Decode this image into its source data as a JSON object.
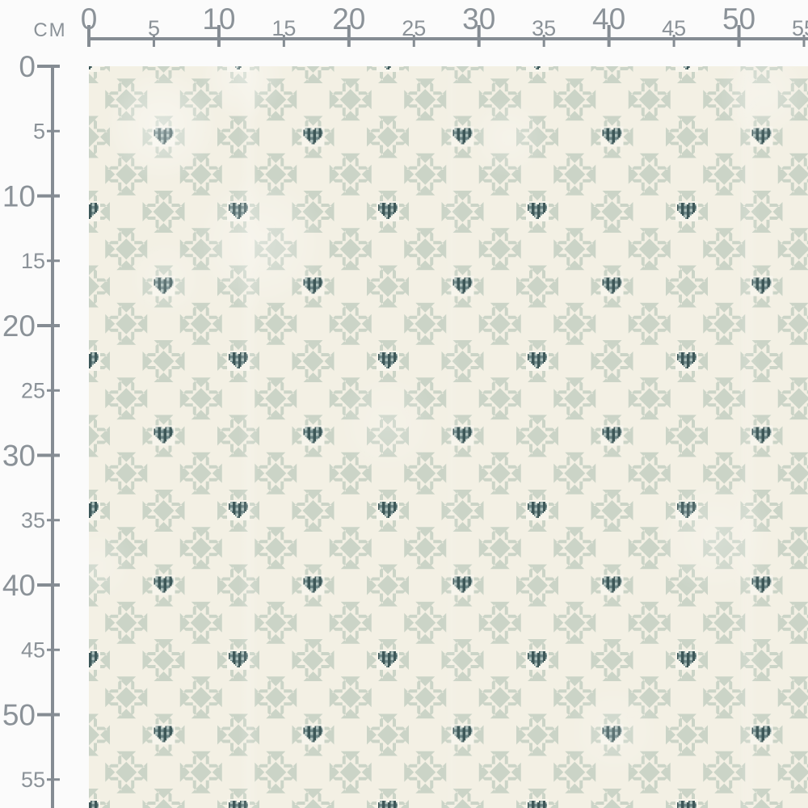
{
  "unit_label": "CM",
  "rulers": {
    "horizontal": {
      "tick_labels": [
        "0",
        "5",
        "10",
        "15",
        "20",
        "25",
        "30",
        "35",
        "40",
        "45",
        "50",
        "55"
      ]
    },
    "vertical": {
      "tick_labels": [
        "0",
        "5",
        "10",
        "15",
        "20",
        "25",
        "30",
        "35",
        "40",
        "45",
        "50",
        "55"
      ]
    }
  },
  "pattern": {
    "motifs": [
      "eight-point-quilt-star",
      "gingham-heart"
    ],
    "colors": {
      "page_background": "#fbfbfb",
      "fabric_background": "#f3f0e4",
      "heart_block_background": "#f7f5ec",
      "star_sage": "#cbd4c7",
      "heart_gingham_dark": "#3d5758",
      "heart_gingham_mid": "#6f8889",
      "heart_gingham_light": "#adbfbb",
      "ruler_gray": "#858c93",
      "ruler_text_gray": "#8b9298"
    }
  }
}
